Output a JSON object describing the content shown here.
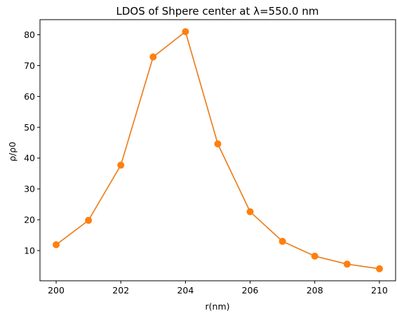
{
  "chart_data": {
    "type": "line",
    "title": "LDOS of Shpere center at λ=550.0 nm",
    "xlabel": "r(nm)",
    "ylabel": "ρ/ρ0",
    "xlim": [
      199.5,
      210.5
    ],
    "ylim": [
      0.2,
      84.9
    ],
    "xticks": [
      200,
      202,
      204,
      206,
      208,
      210
    ],
    "yticks": [
      10,
      20,
      30,
      40,
      50,
      60,
      70,
      80
    ],
    "grid": false,
    "series": [
      {
        "line_color": "#1f77b4",
        "marker": "none",
        "x": [
          200,
          201,
          202,
          203,
          204,
          205,
          206,
          207,
          208,
          209,
          210
        ],
        "y": [
          11.9,
          19.8,
          37.7,
          72.8,
          81.0,
          44.6,
          22.6,
          13.0,
          8.2,
          5.6,
          4.1
        ]
      },
      {
        "line_color": "#ff7f0e",
        "marker": "circle",
        "x": [
          200,
          201,
          202,
          203,
          204,
          205,
          206,
          207,
          208,
          209,
          210
        ],
        "y": [
          11.9,
          19.8,
          37.7,
          72.8,
          81.0,
          44.6,
          22.6,
          13.0,
          8.2,
          5.6,
          4.1
        ]
      }
    ]
  }
}
